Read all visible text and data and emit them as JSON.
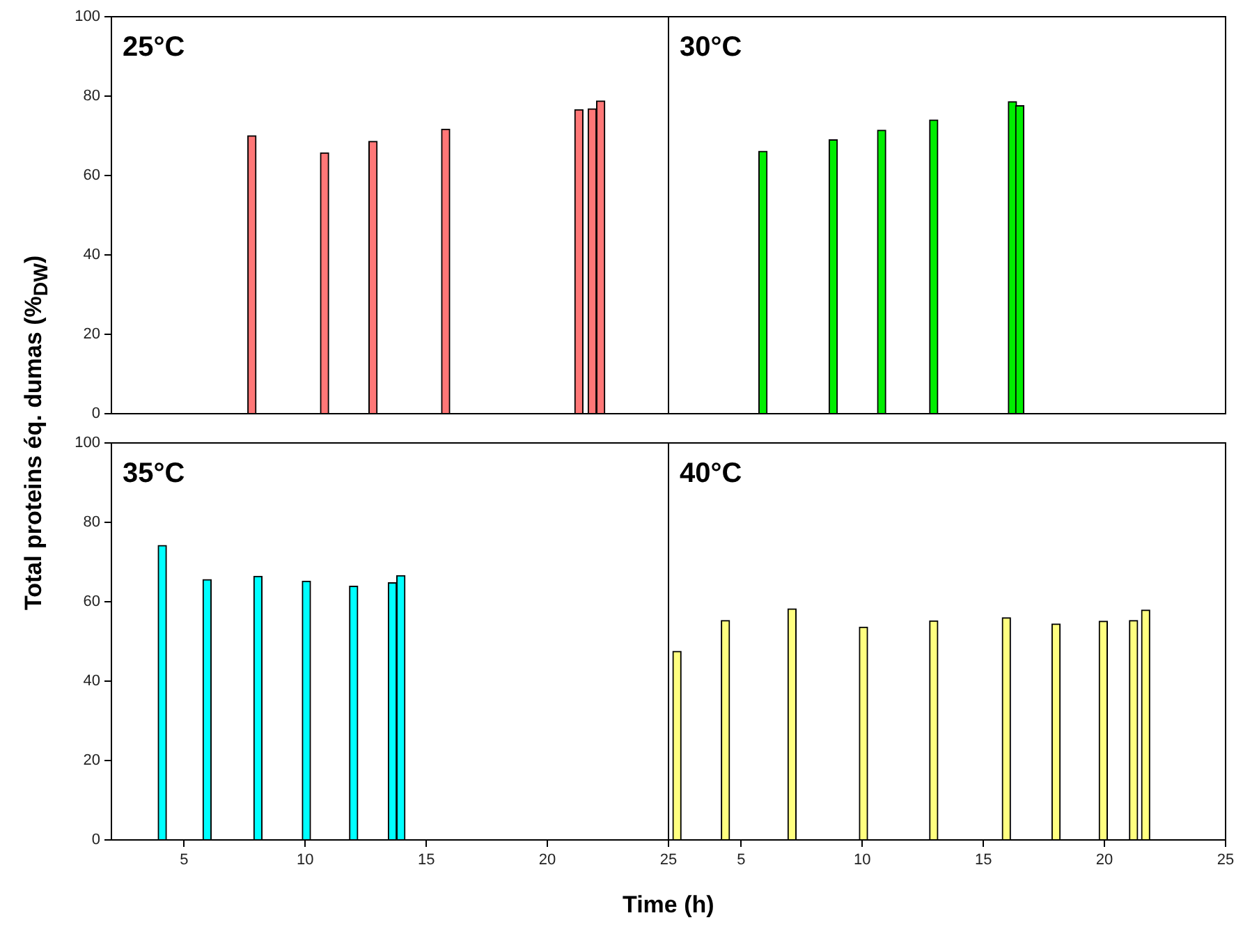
{
  "chart_data": [
    {
      "type": "bar",
      "title": "25°C",
      "ylabel": "Total proteins éq. dumas (%$_{DW}$)",
      "x": [
        7.8,
        10.8,
        12.8,
        15.8,
        21.3,
        21.85,
        22.2
      ],
      "values": [
        70,
        65.7,
        68.6,
        71.7,
        76.6,
        76.8,
        78.8
      ],
      "color": "#ff7777",
      "xlim": [
        2,
        25
      ],
      "xticks": [
        5,
        10,
        15,
        20,
        25
      ],
      "ylim": [
        0,
        100
      ],
      "yticks": [
        0,
        20,
        40,
        60,
        80,
        100
      ],
      "tick_labels": "y"
    },
    {
      "type": "bar",
      "title": "30°C",
      "x": [
        5.9,
        8.8,
        10.8,
        12.95,
        16.2,
        16.5
      ],
      "values": [
        66.1,
        69,
        71.4,
        74,
        78.6,
        77.6
      ],
      "color": "#00ee00",
      "xlim": [
        2,
        25
      ],
      "xticks": [
        5,
        10,
        15,
        20,
        25
      ],
      "ylim": [
        0,
        100
      ],
      "yticks": [
        0,
        20,
        40,
        60,
        80,
        100
      ],
      "tick_labels": false
    },
    {
      "type": "bar",
      "title": "35°C",
      "xlabel": "Time (h)",
      "x": [
        4.1,
        5.95,
        8.05,
        10.05,
        12,
        13.6,
        13.95
      ],
      "values": [
        74.2,
        65.6,
        66.4,
        65.2,
        63.9,
        64.8,
        66.6
      ],
      "color": "#00ffff",
      "xlim": [
        2,
        25
      ],
      "xticks": [
        5,
        10,
        15,
        20,
        25
      ],
      "ylim": [
        0,
        100
      ],
      "yticks": [
        0,
        20,
        40,
        60,
        80,
        100
      ]
    },
    {
      "type": "bar",
      "title": "40°C",
      "x": [
        2.35,
        4.35,
        7.1,
        10.05,
        12.95,
        15.95,
        18,
        19.95,
        21.2,
        21.7
      ],
      "values": [
        47.5,
        55.3,
        58.2,
        53.6,
        55.2,
        56,
        54.4,
        55.1,
        55.3,
        57.9
      ],
      "color": "#ffff80",
      "xlim": [
        2,
        25
      ],
      "xticks": [
        5,
        10,
        15,
        20,
        25
      ],
      "ylim": [
        0,
        100
      ],
      "yticks": [
        0,
        20,
        40,
        60,
        80,
        100
      ],
      "tick_labels": "x"
    }
  ]
}
